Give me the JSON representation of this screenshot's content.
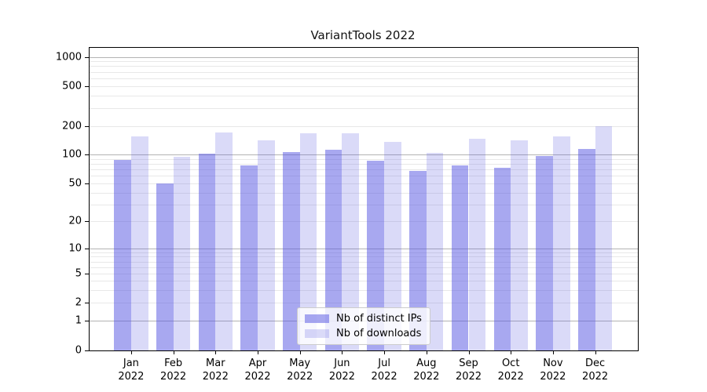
{
  "chart_data": {
    "type": "bar",
    "title": "VariantTools 2022",
    "categories": [
      "Jan 2022",
      "Feb 2022",
      "Mar 2022",
      "Apr 2022",
      "May 2022",
      "Jun 2022",
      "Jul 2022",
      "Aug 2022",
      "Sep 2022",
      "Oct 2022",
      "Nov 2022",
      "Dec 2022"
    ],
    "series": [
      {
        "name": "Nb of distinct IPs",
        "color": "rgba(85,85,225,0.51)",
        "values": [
          88,
          50,
          102,
          77,
          106,
          113,
          86,
          67,
          77,
          73,
          96,
          115
        ]
      },
      {
        "name": "Nb of downloads",
        "color": "rgba(85,85,225,0.22)",
        "values": [
          155,
          95,
          169,
          140,
          168,
          166,
          136,
          103,
          145,
          142,
          156,
          200
        ]
      }
    ],
    "yscale": "symlog",
    "yticks": [
      0,
      1,
      2,
      5,
      10,
      20,
      50,
      100,
      200,
      500,
      1000
    ],
    "ylim": [
      0,
      1250
    ],
    "grid": true,
    "legend_position": "lower center",
    "axis_color": "#000000",
    "major_grid_color": "#b3b3b3",
    "minor_grid_color": "#e8e8e8",
    "background_color": "#ffffff"
  }
}
